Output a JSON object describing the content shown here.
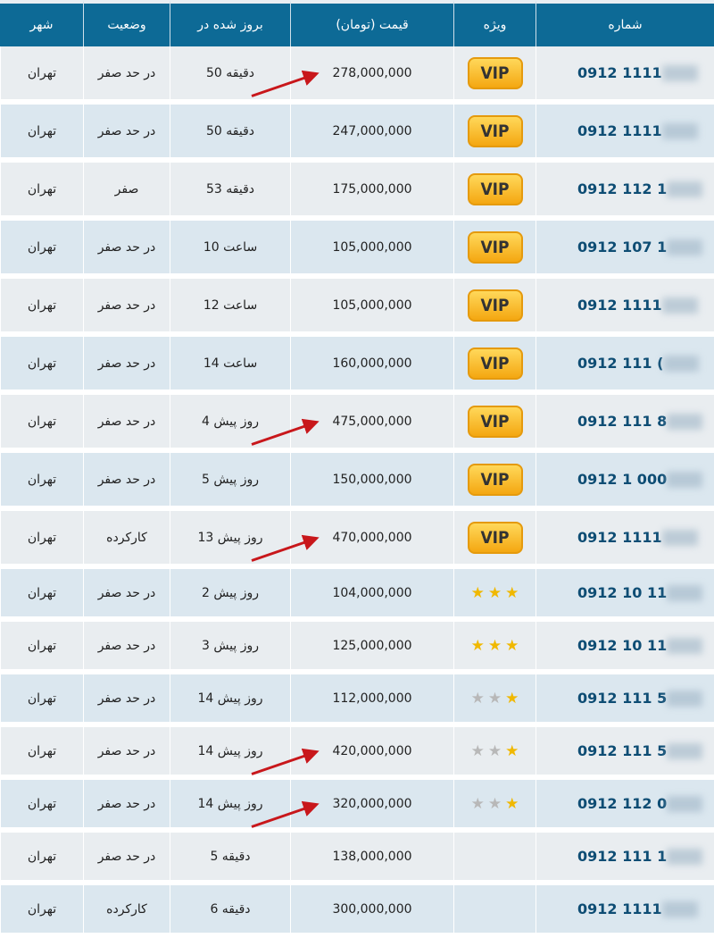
{
  "headers": {
    "city": "شهر",
    "status": "وضعیت",
    "updated": "بروز شده در",
    "price": "قیمت (تومان)",
    "special": "ویژه",
    "number": "شماره"
  },
  "colors": {
    "header": "#0d6a96",
    "arrow": "#c8171b",
    "vip": "#f4a711"
  },
  "rows": [
    {
      "city": "تهران",
      "status": "در حد صفر",
      "updated": "50 دقیقه",
      "price": "278,000,000",
      "special": "VIP",
      "number": "0912 1111",
      "arrow": true
    },
    {
      "city": "تهران",
      "status": "در حد صفر",
      "updated": "50 دقیقه",
      "price": "247,000,000",
      "special": "VIP",
      "number": "0912 1111"
    },
    {
      "city": "تهران",
      "status": "صفر",
      "updated": "53 دقیقه",
      "price": "175,000,000",
      "special": "VIP",
      "number": "0912 112 1"
    },
    {
      "city": "تهران",
      "status": "در حد صفر",
      "updated": "10 ساعت",
      "price": "105,000,000",
      "special": "VIP",
      "number": "0912 107 1"
    },
    {
      "city": "تهران",
      "status": "در حد صفر",
      "updated": "12 ساعت",
      "price": "105,000,000",
      "special": "VIP",
      "number": "0912 1111"
    },
    {
      "city": "تهران",
      "status": "در حد صفر",
      "updated": "14 ساعت",
      "price": "160,000,000",
      "special": "VIP",
      "number": "0912 111 ("
    },
    {
      "city": "تهران",
      "status": "در حد صفر",
      "updated": "4 روز پیش",
      "price": "475,000,000",
      "special": "VIP",
      "number": "0912 111 8",
      "arrow": true
    },
    {
      "city": "تهران",
      "status": "در حد صفر",
      "updated": "5 روز پیش",
      "price": "150,000,000",
      "special": "VIP",
      "number": "0912 1 000"
    },
    {
      "city": "تهران",
      "status": "کارکرده",
      "updated": "13 روز پیش",
      "price": "470,000,000",
      "special": "VIP",
      "number": "0912 1111",
      "arrow": true
    },
    {
      "city": "تهران",
      "status": "در حد صفر",
      "updated": "2 روز پیش",
      "price": "104,000,000",
      "stars": 3,
      "number": "0912 10 11"
    },
    {
      "city": "تهران",
      "status": "در حد صفر",
      "updated": "3 روز پیش",
      "price": "125,000,000",
      "stars": 3,
      "number": "0912 10 11"
    },
    {
      "city": "تهران",
      "status": "در حد صفر",
      "updated": "14 روز پیش",
      "price": "112,000,000",
      "stars": 1,
      "number": "0912 111 5"
    },
    {
      "city": "تهران",
      "status": "در حد صفر",
      "updated": "14 روز پیش",
      "price": "420,000,000",
      "stars": 1,
      "number": "0912 111 5",
      "arrow": true
    },
    {
      "city": "تهران",
      "status": "در حد صفر",
      "updated": "14 روز پیش",
      "price": "320,000,000",
      "stars": 1,
      "number": "0912 112 0",
      "arrow": true
    },
    {
      "city": "تهران",
      "status": "در حد صفر",
      "updated": "5 دقیقه",
      "price": "138,000,000",
      "number": "0912 111 1"
    },
    {
      "city": "تهران",
      "status": "کارکرده",
      "updated": "6 دقیقه",
      "price": "300,000,000",
      "number": "0912 1111"
    }
  ]
}
